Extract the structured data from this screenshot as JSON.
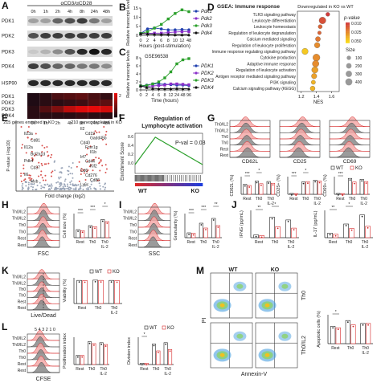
{
  "panel_labels": [
    "A",
    "B",
    "C",
    "D",
    "E",
    "F",
    "G",
    "H",
    "I",
    "J",
    "K",
    "L",
    "M"
  ],
  "panelA": {
    "condition": "αCD3/αCD28",
    "timepoints": [
      "0h",
      "1h",
      "2h",
      "4h",
      "8h",
      "24h",
      "48h"
    ],
    "blots": [
      "PDK1",
      "PDK2",
      "PDK3",
      "PDK4",
      "HSP90"
    ],
    "heatmap_rows": [
      "PDK1",
      "PDK2",
      "PDK3",
      "PDK4"
    ],
    "heatmap_timepoints": [
      "0h",
      "1h",
      "2h",
      "4h",
      "8h",
      "24h",
      "48h"
    ],
    "heatmap_scale_max": "2",
    "heatmap_scale_min": "0",
    "heatmap_values": [
      [
        0.1,
        0.2,
        0.5,
        0.6,
        0.7,
        0.5,
        0.3
      ],
      [
        0.1,
        0.2,
        0.2,
        0.3,
        0.4,
        0.6,
        0.7
      ],
      [
        0.2,
        0.6,
        1.0,
        1.6,
        1.9,
        2.0,
        1.8
      ],
      [
        0.2,
        0.2,
        0.2,
        0.2,
        0.3,
        0.2,
        0.2
      ]
    ]
  },
  "panelB": {
    "ylabel": "Relative transcript levels",
    "xlabel": "Hours (post-stimulation)",
    "xticks": [
      "0",
      "2",
      "4",
      "6",
      "8",
      "10",
      "12",
      "48"
    ],
    "yticks": [
      "0",
      "5",
      "10",
      "15"
    ],
    "legend": [
      "Pdk1",
      "Pdk2",
      "Pdk3",
      "Pdk4"
    ],
    "colors": [
      "#1f3fae",
      "#8a2fc9",
      "#2ca02c",
      "#111111"
    ],
    "series": [
      {
        "name": "Pdk1",
        "x": [
          0,
          2,
          4,
          6,
          8,
          10,
          12,
          48
        ],
        "y": [
          1,
          3.5,
          4,
          3.5,
          3,
          3,
          3.2,
          3
        ]
      },
      {
        "name": "Pdk2",
        "x": [
          0,
          2,
          4,
          6,
          8,
          10,
          12,
          48
        ],
        "y": [
          1,
          1,
          1.2,
          1.2,
          1.5,
          1.8,
          2,
          2
        ]
      },
      {
        "name": "Pdk3",
        "x": [
          0,
          2,
          4,
          6,
          8,
          10,
          12,
          48
        ],
        "y": [
          1,
          2,
          4,
          6,
          9,
          12,
          14,
          13
        ]
      },
      {
        "name": "Pdk4",
        "x": [
          0,
          2,
          4,
          6,
          8,
          10,
          12,
          48
        ],
        "y": [
          1,
          0.8,
          0.6,
          0.5,
          0.5,
          0.4,
          0.4,
          0.4
        ]
      }
    ]
  },
  "panelC": {
    "dataset": "GSE96538",
    "ylabel": "Relative transcript levels",
    "xlabel": "Time (hours)",
    "xticks": [
      "0",
      "2",
      "4",
      "6",
      "8",
      "12",
      "24",
      "48",
      "96"
    ],
    "yticks": [
      "0",
      "2",
      "4",
      "6",
      "8"
    ],
    "legend": [
      "PDK1",
      "PDK2",
      "PDK3",
      "PDK4"
    ],
    "series": [
      {
        "name": "PDK1",
        "y": [
          1,
          1.2,
          1.5,
          1.5,
          1.4,
          1.3,
          1.2,
          1.2,
          1.1
        ]
      },
      {
        "name": "PDK2",
        "y": [
          1,
          0.9,
          1,
          1.1,
          1.2,
          1.5,
          1.5,
          1.4,
          1.3
        ]
      },
      {
        "name": "PDK3",
        "y": [
          1,
          1.1,
          1.5,
          2,
          3,
          4.5,
          6.5,
          7.5,
          7.8
        ]
      },
      {
        "name": "PDK4",
        "y": [
          1,
          0.6,
          0.4,
          0.3,
          0.3,
          0.3,
          0.4,
          0.3,
          0.3
        ]
      }
    ]
  },
  "panelD": {
    "title": "GSEA: Immune response",
    "subtitle": "Downregulated in KO vs WT",
    "xlabel": "NES",
    "xticks": [
      "1.2",
      "1.4",
      "1.6"
    ],
    "pvalue_label": "p-value",
    "pvalue_ticks": [
      "0.010",
      "0.025",
      "0.050"
    ],
    "size_label": "Size",
    "size_ticks": [
      "100",
      "200",
      "300",
      "400"
    ],
    "pathways": [
      {
        "name": "TLR3 signaling pathway",
        "nes": 1.55,
        "size": 80,
        "p": 0.01
      },
      {
        "name": "Leukocyte differentiation",
        "nes": 1.48,
        "size": 380,
        "p": 0.015
      },
      {
        "name": "Leukocyte homeostasis",
        "nes": 1.45,
        "size": 90,
        "p": 0.02
      },
      {
        "name": "Regulation of leukocyte degranulation",
        "nes": 1.44,
        "size": 60,
        "p": 0.02
      },
      {
        "name": "Calcium mediated signaling",
        "nes": 1.42,
        "size": 160,
        "p": 0.025
      },
      {
        "name": "Regulation of leukocyte proliferation",
        "nes": 1.41,
        "size": 220,
        "p": 0.03
      },
      {
        "name": "Immune response regulating signaling pathway",
        "nes": 1.25,
        "size": 300,
        "p": 0.045
      },
      {
        "name": "Cytokine production",
        "nes": 1.4,
        "size": 420,
        "p": 0.03
      },
      {
        "name": "Adaptive immune response",
        "nes": 1.39,
        "size": 350,
        "p": 0.03
      },
      {
        "name": "Regulation of leukocyte activation",
        "nes": 1.38,
        "size": 320,
        "p": 0.035
      },
      {
        "name": "Antigen receptor mediated signaling pathway",
        "nes": 1.37,
        "size": 200,
        "p": 0.035
      },
      {
        "name": "PI3K signaling",
        "nes": 1.36,
        "size": 100,
        "p": 0.04
      },
      {
        "name": "Calcium signaling pathway (KEGG)",
        "nes": 1.35,
        "size": 150,
        "p": 0.04
      }
    ]
  },
  "panelE": {
    "xlabel": "Fold change (log2)",
    "ylabel": "P-value (-log10)",
    "left_note": "215 genes enriched in KO",
    "right_note": "210 genes depleted in KO",
    "genes_left": [
      "Il23a",
      "Cd81",
      "Il12a",
      "Bcl2a1d",
      "Pdk4",
      "Cd37",
      "Il6",
      "Myb"
    ],
    "genes_right": [
      "Il2",
      "Cd19",
      "Gadd45b",
      "Cd40",
      "Fcer1g",
      "Il1b",
      "Irf7",
      "Cd44",
      "Klf2",
      "Cd6",
      "Cd276",
      "Cd86",
      "Ly6c"
    ]
  },
  "panelF": {
    "title": "Regulation of Lymphocyte activation",
    "ylabel": "Enrichment Score",
    "pvalue": "P-val = 0.03",
    "left_label": "WT",
    "right_label": "KO",
    "yticks": [
      "0.6",
      "0.4",
      "0.2",
      "0.0"
    ]
  },
  "panelG": {
    "hist_rows": [
      "Th0/IL2",
      "Th0/IL2",
      "Th0",
      "Th0",
      "Rest",
      "Rest"
    ],
    "markers": [
      "CD62L",
      "CD25",
      "CD69"
    ],
    "bar_ylabels": [
      "CD62L (%)",
      "CD25+ (%)",
      "CD69+ (%)"
    ],
    "groups": [
      "Rest",
      "Th0",
      "Th0 IL-2"
    ],
    "legend": [
      "WT",
      "KO"
    ],
    "sig": [
      "***",
      "*",
      "**",
      "***",
      "***"
    ],
    "bars": [
      {
        "wt": [
          45,
          60,
          58
        ],
        "ko": [
          40,
          48,
          50
        ],
        "ymax": 80
      },
      {
        "wt": [
          5,
          70,
          80
        ],
        "ko": [
          4,
          72,
          75
        ],
        "ymax": 100
      },
      {
        "wt": [
          5,
          90,
          85
        ],
        "ko": [
          4,
          70,
          72
        ],
        "ymax": 100
      }
    ]
  },
  "panelH": {
    "xlabel": "FSC",
    "ylabel": "Cell size (%)",
    "hist_rows": [
      "Th0/IL2",
      "Th0/IL2",
      "Th0",
      "Th0",
      "Rest",
      "Rest"
    ],
    "groups": [
      "Rest",
      "Th0",
      "Th0 IL-2"
    ],
    "wt": [
      40,
      60,
      90
    ],
    "ko": [
      35,
      55,
      80
    ],
    "ymax": 120,
    "sig": [
      "***",
      "***",
      "*"
    ]
  },
  "panelI": {
    "xlabel": "SSC",
    "ylabel": "Granularity (%)",
    "hist_rows": [
      "Th0/IL2",
      "Th0/IL2",
      "Th0",
      "Th0",
      "Rest",
      "Rest"
    ],
    "groups": [
      "Rest",
      "Th0",
      "Th0 IL-2"
    ],
    "wt": [
      10,
      30,
      40
    ],
    "ko": [
      9,
      20,
      25
    ],
    "ymax": 50,
    "sig": [
      "***",
      "***",
      "**"
    ]
  },
  "panelJ": {
    "ylabel1": "IFNG (pg/mL)",
    "ylabel2": "IL-17 (pg/mL)",
    "groups": [
      "Rest",
      "Th0",
      "Th0 IL-2"
    ],
    "ifng_wt": [
      200,
      1500,
      1300
    ],
    "ifng_ko": [
      150,
      800,
      700
    ],
    "il17_wt": [
      20,
      60,
      100
    ],
    "il17_ko": [
      15,
      40,
      50
    ],
    "sig": [
      "**",
      "*",
      "**",
      "*"
    ]
  },
  "panelK": {
    "xlabel": "Live/Dead",
    "ylabel": "Viability (%)",
    "legend": [
      "WT",
      "KO"
    ],
    "hist_rows": [
      "Th0/IL2",
      "Th0/IL2",
      "Th0",
      "Th0",
      "Rest",
      "Rest"
    ],
    "groups": [
      "Rest",
      "Th0",
      "Th0 IL-2"
    ],
    "wt": [
      90,
      91,
      90
    ],
    "ko": [
      89,
      90,
      89
    ],
    "ymax": 100
  },
  "panelL": {
    "xlabel": "CFSE",
    "generations": "5 4 3 2 1 0",
    "ylabel1": "Proliferation index",
    "ylabel2": "Division index",
    "legend": [
      "WT",
      "KO"
    ],
    "hist_rows": [
      "Th0/IL2",
      "Th0/IL2",
      "Th0",
      "Th0",
      "Rest",
      "Rest"
    ],
    "groups": [
      "Rest",
      "Th0",
      "Th0 IL-2"
    ],
    "prolif_wt": [
      1,
      2.5,
      2.4
    ],
    "prolif_ko": [
      1,
      2.3,
      2.2
    ],
    "div_wt": [
      0.1,
      1.5,
      1.6
    ],
    "div_ko": [
      0.1,
      1.0,
      1.1
    ],
    "sig": [
      "*"
    ]
  },
  "panelM": {
    "xlabel": "Annexin-V",
    "ylabel": "PI",
    "cols": [
      "WT",
      "KO"
    ],
    "rows": [
      "Th0",
      "Th0/IL2"
    ],
    "bar_ylabel": "Apoptotic cells (%)",
    "groups": [
      "Rest",
      "Th0",
      "Th0 IL-2"
    ],
    "wt": [
      12,
      16,
      14
    ],
    "ko": [
      11,
      13,
      14
    ],
    "ymax": 20
  }
}
